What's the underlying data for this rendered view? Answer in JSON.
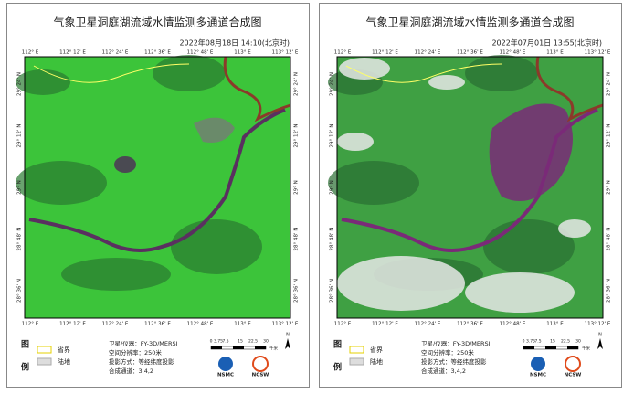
{
  "panels": [
    {
      "title": "气象卫星洞庭湖流域水情监测多通道合成图",
      "datetime": "2022年08月18日 14:10(北京时)",
      "lon_labels": [
        "112° E",
        "112° 12' E",
        "112° 24' E",
        "112° 36' E",
        "112° 48' E",
        "113° E",
        "113° 12' E"
      ],
      "lat_labels": [
        "29° 24' N",
        "29° 12' N",
        "29° N",
        "28° 48' N",
        "28° 36' N"
      ]
    },
    {
      "title": "气象卫星洞庭湖流域水情监测多通道合成图",
      "datetime": "2022年07月01日 13:55(北京时)",
      "lon_labels": [
        "112° E",
        "112° 12' E",
        "112° 24' E",
        "112° 36' E",
        "112° 48' E",
        "113° E",
        "113° 12' E"
      ],
      "lat_labels": [
        "29° 24' N",
        "29° 12' N",
        "29° N",
        "28° 48' N",
        "28° 36' N"
      ]
    }
  ],
  "legend": {
    "heading": [
      "图",
      "例"
    ],
    "items": [
      "省界",
      "陆地"
    ],
    "info": [
      "卫星/仪器：FY-3D/MERSI",
      "空间分辨率：250米",
      "投影方式：等经纬度投影",
      "合成通道：3,4,2"
    ],
    "scale_labels": [
      "0",
      "3.75",
      "7.5",
      "15",
      "22.5",
      "30"
    ],
    "scale_unit": "千米",
    "north": "N",
    "logos": [
      "NSMC",
      "NCSW"
    ]
  }
}
